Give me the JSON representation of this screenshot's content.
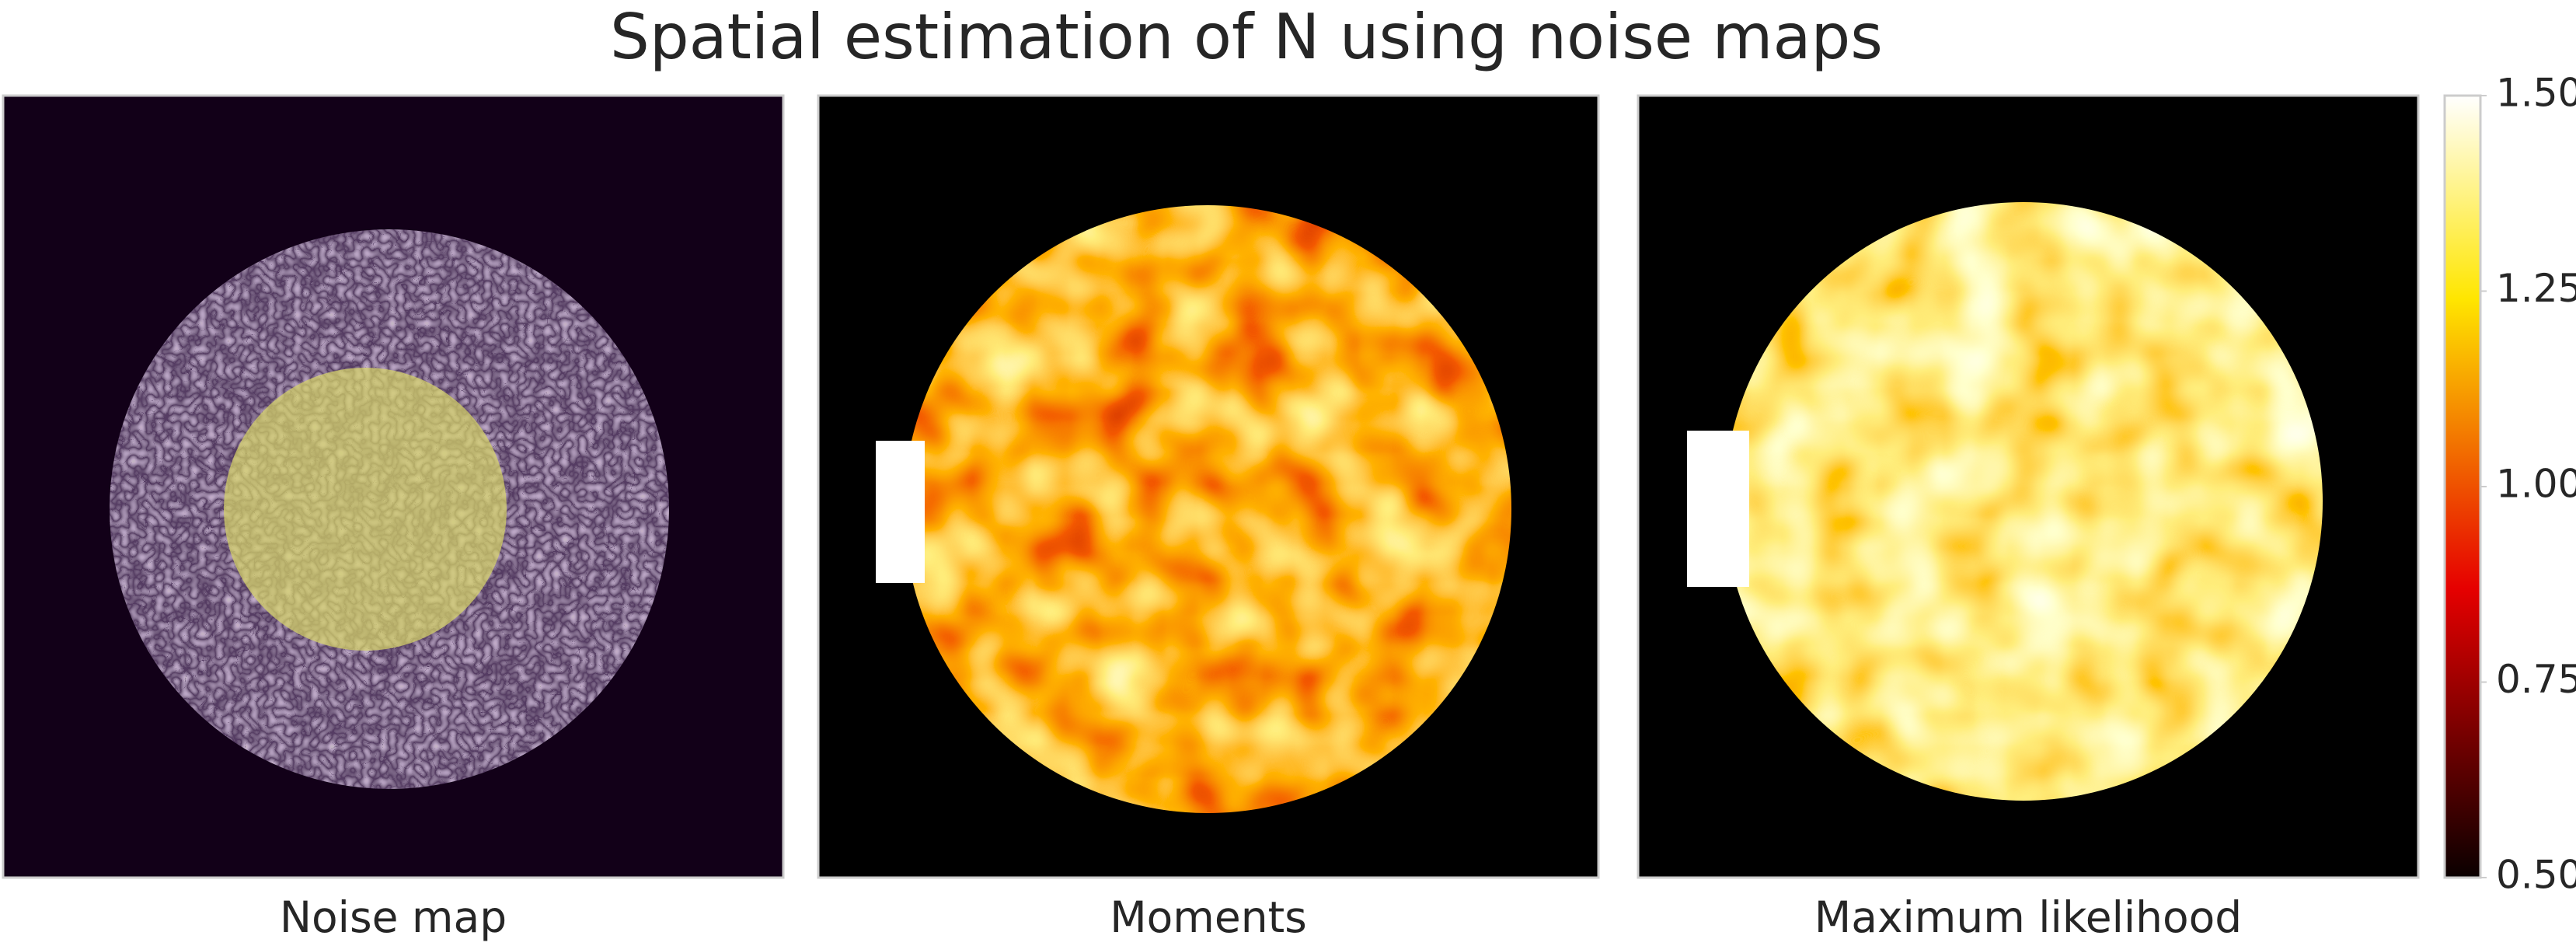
{
  "chart_data": {
    "type": "image-panels",
    "title": "Spatial estimation of N using noise maps",
    "panels": [
      "Noise map",
      "Moments",
      "Maximum likelihood"
    ],
    "colorbar": {
      "colormap": "hot",
      "ylim": [
        0.5,
        1.5
      ],
      "yticks": [
        {
          "value": 0.5,
          "label": "0.50"
        },
        {
          "value": 0.75,
          "label": "0.75"
        },
        {
          "value": 1.0,
          "label": "1.00"
        },
        {
          "value": 1.25,
          "label": "1.25"
        },
        {
          "value": 1.5,
          "label": "1.50"
        }
      ]
    }
  }
}
